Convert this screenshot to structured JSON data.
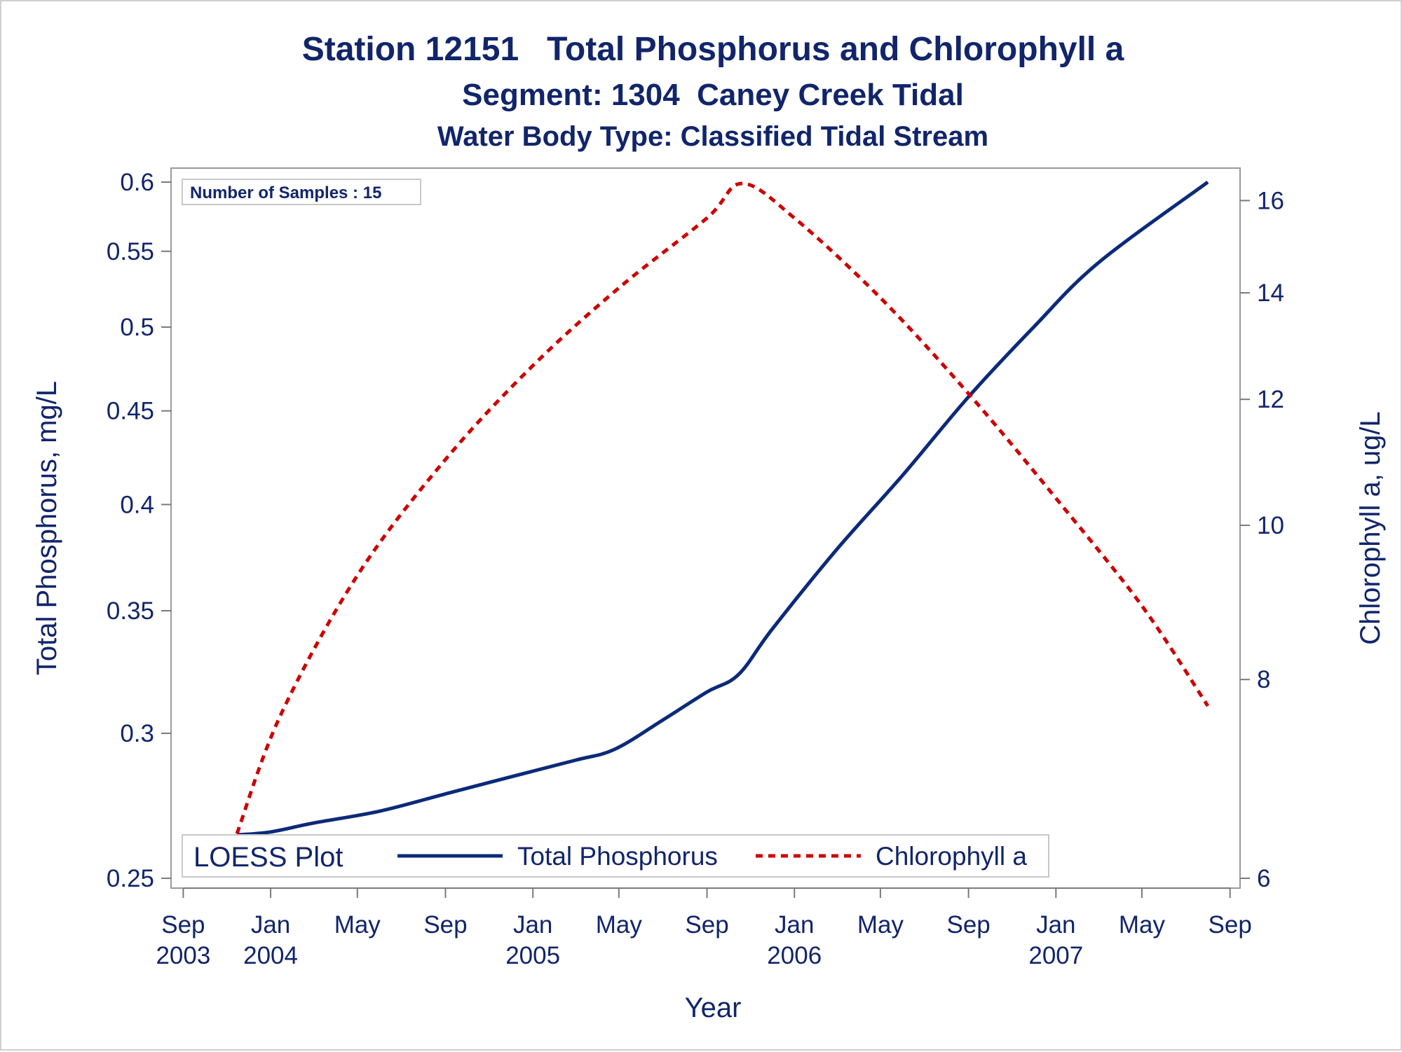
{
  "titles": {
    "line1": "Station 12151   Total Phosphorus and Chlorophyll a",
    "line2": "Segment: 1304  Caney Creek Tidal",
    "line3": "Water Body Type: Classified Tidal Stream"
  },
  "inset": {
    "samples_label": "Number of Samples : 15"
  },
  "legend": {
    "title": "LOESS Plot",
    "items": [
      "Total Phosphorus",
      "Chlorophyll a"
    ]
  },
  "colors": {
    "text": "#11256b",
    "phosphorus": "#0b2a7a",
    "chlorophyll": "#cc0000",
    "axis": "#7a7a7a"
  },
  "chart_data": {
    "type": "line",
    "xlabel": "Year",
    "ylabel_left": "Total Phosphorus, mg/L",
    "ylabel_right": "Chlorophyll a, ug/L",
    "x_ticks": [
      {
        "date": "2003-09-01",
        "label": [
          "Sep",
          "2003"
        ]
      },
      {
        "date": "2004-01-01",
        "label": [
          "Jan",
          "2004"
        ]
      },
      {
        "date": "2004-05-01",
        "label": [
          "May",
          ""
        ]
      },
      {
        "date": "2004-09-01",
        "label": [
          "Sep",
          ""
        ]
      },
      {
        "date": "2005-01-01",
        "label": [
          "Jan",
          "2005"
        ]
      },
      {
        "date": "2005-05-01",
        "label": [
          "May",
          ""
        ]
      },
      {
        "date": "2005-09-01",
        "label": [
          "Sep",
          ""
        ]
      },
      {
        "date": "2006-01-01",
        "label": [
          "Jan",
          "2006"
        ]
      },
      {
        "date": "2006-05-01",
        "label": [
          "May",
          ""
        ]
      },
      {
        "date": "2006-09-01",
        "label": [
          "Sep",
          ""
        ]
      },
      {
        "date": "2007-01-01",
        "label": [
          "Jan",
          "2007"
        ]
      },
      {
        "date": "2007-05-01",
        "label": [
          "May",
          ""
        ]
      },
      {
        "date": "2007-09-01",
        "label": [
          "Sep",
          ""
        ]
      }
    ],
    "xlim": [
      "2003-08-15",
      "2007-09-15"
    ],
    "y_left": {
      "scale": "log",
      "lim": [
        0.25,
        0.6
      ],
      "ticks": [
        0.25,
        0.3,
        0.35,
        0.4,
        0.45,
        0.5,
        0.55,
        0.6
      ],
      "tick_labels": [
        "0.25",
        "0.3",
        "0.35",
        "0.4",
        "0.45",
        "0.5",
        "0.55",
        "0.6"
      ]
    },
    "y_right": {
      "scale": "log",
      "lim": [
        6,
        16.5
      ],
      "ticks": [
        6,
        8,
        10,
        12,
        14,
        16
      ],
      "tick_labels": [
        "6",
        "8",
        "10",
        "12",
        "14",
        "16"
      ]
    },
    "series": [
      {
        "name": "Total Phosphorus",
        "axis": "left",
        "style": "solid",
        "points": [
          {
            "x": "2003-11-15",
            "y": 0.264
          },
          {
            "x": "2004-01-01",
            "y": 0.265
          },
          {
            "x": "2004-03-01",
            "y": 0.268
          },
          {
            "x": "2004-06-01",
            "y": 0.272
          },
          {
            "x": "2004-09-01",
            "y": 0.278
          },
          {
            "x": "2004-12-01",
            "y": 0.284
          },
          {
            "x": "2005-03-01",
            "y": 0.29
          },
          {
            "x": "2005-04-25",
            "y": 0.294
          },
          {
            "x": "2005-07-01",
            "y": 0.305
          },
          {
            "x": "2005-09-01",
            "y": 0.316
          },
          {
            "x": "2005-10-15",
            "y": 0.323
          },
          {
            "x": "2005-12-01",
            "y": 0.342
          },
          {
            "x": "2006-03-01",
            "y": 0.378
          },
          {
            "x": "2006-06-01",
            "y": 0.415
          },
          {
            "x": "2006-09-01",
            "y": 0.458
          },
          {
            "x": "2006-12-01",
            "y": 0.5
          },
          {
            "x": "2007-03-01",
            "y": 0.542
          },
          {
            "x": "2007-08-01",
            "y": 0.6
          }
        ]
      },
      {
        "name": "Chlorophyll a",
        "axis": "right",
        "style": "dashed",
        "points": [
          {
            "x": "2003-11-15",
            "y": 6.4
          },
          {
            "x": "2004-01-15",
            "y": 7.6
          },
          {
            "x": "2004-05-01",
            "y": 9.3
          },
          {
            "x": "2004-09-01",
            "y": 11.0
          },
          {
            "x": "2005-01-01",
            "y": 12.6
          },
          {
            "x": "2005-05-01",
            "y": 14.1
          },
          {
            "x": "2005-09-01",
            "y": 15.6
          },
          {
            "x": "2005-10-20",
            "y": 16.4
          },
          {
            "x": "2006-01-01",
            "y": 15.6
          },
          {
            "x": "2006-05-01",
            "y": 13.9
          },
          {
            "x": "2006-09-01",
            "y": 12.1
          },
          {
            "x": "2007-01-01",
            "y": 10.4
          },
          {
            "x": "2007-05-01",
            "y": 8.9
          },
          {
            "x": "2007-08-01",
            "y": 7.7
          }
        ]
      }
    ],
    "grid": false,
    "legend_position": "bottom-inside"
  }
}
